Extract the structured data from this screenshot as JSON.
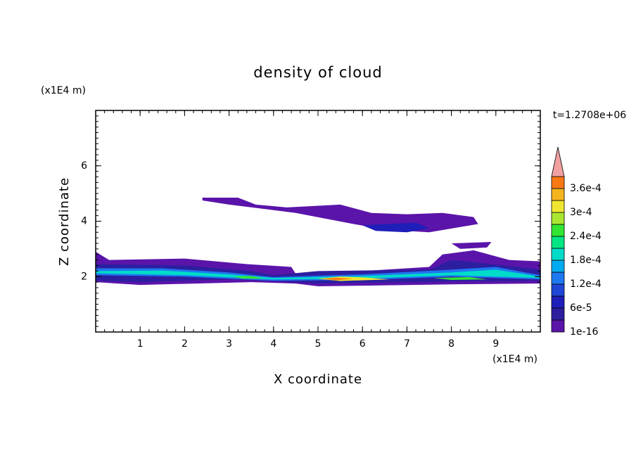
{
  "chart_data": {
    "type": "contour",
    "title": "density of cloud",
    "x_label": "X coordinate",
    "y_label": "Z coordinate",
    "x_unit": "(x1E4 m)",
    "y_unit": "(x1E4 m)",
    "annotation": "t=1.2708e+06",
    "xlim": [
      0,
      10
    ],
    "ylim": [
      0,
      8
    ],
    "xticks": [
      1,
      2,
      3,
      4,
      5,
      6,
      7,
      8,
      9
    ],
    "yticks": [
      2,
      4,
      6
    ],
    "x_minor_step": 0.2,
    "y_minor_step": 0.2,
    "levels": [
      1e-16,
      3e-05,
      6e-05,
      9e-05,
      0.00012,
      0.00015,
      0.00018,
      0.00021,
      0.00024,
      0.00027,
      0.0003,
      0.00033,
      0.00036
    ],
    "level_labels": [
      "1e-16",
      null,
      "6e-5",
      null,
      "1.2e-4",
      null,
      "1.8e-4",
      null,
      "2.4e-4",
      null,
      "3e-4",
      null,
      "3.6e-4"
    ],
    "level_colors": [
      "#5a14aa",
      "#2d1ea0",
      "#1e1eb9",
      "#1e46d7",
      "#1e78f0",
      "#00aaf0",
      "#00dcc8",
      "#00e682",
      "#32e632",
      "#aae632",
      "#f0e632",
      "#f5b41e",
      "#fa7814"
    ],
    "overflow_color": "#f0a0a0",
    "regions": [
      {
        "level": 1e-16,
        "points": [
          [
            2.4,
            4.85
          ],
          [
            3.2,
            4.85
          ],
          [
            3.6,
            4.6
          ],
          [
            4.3,
            4.5
          ],
          [
            5.5,
            4.6
          ],
          [
            6.2,
            4.3
          ],
          [
            7,
            4.25
          ],
          [
            7.8,
            4.3
          ],
          [
            8.5,
            4.15
          ],
          [
            8.6,
            3.9
          ],
          [
            7.5,
            3.6
          ],
          [
            6.5,
            3.7
          ],
          [
            5.8,
            3.9
          ],
          [
            4.5,
            4.3
          ],
          [
            4,
            4.4
          ],
          [
            3,
            4.6
          ],
          [
            2.4,
            4.75
          ]
        ]
      },
      {
        "level": 6e-05,
        "points": [
          [
            6,
            3.85
          ],
          [
            7.2,
            3.95
          ],
          [
            7.5,
            3.75
          ],
          [
            7,
            3.6
          ],
          [
            6.3,
            3.65
          ]
        ]
      },
      {
        "level": 1e-16,
        "points": [
          [
            8,
            3.2
          ],
          [
            8.9,
            3.25
          ],
          [
            8.8,
            3.05
          ],
          [
            8.2,
            3.0
          ]
        ]
      },
      {
        "level": 1e-16,
        "points": [
          [
            0,
            2.9
          ],
          [
            0.3,
            2.6
          ],
          [
            2,
            2.65
          ],
          [
            3.4,
            2.45
          ],
          [
            4.4,
            2.35
          ],
          [
            4.5,
            2.1
          ],
          [
            6,
            2.2
          ],
          [
            7.5,
            2.35
          ],
          [
            7.8,
            2.8
          ],
          [
            8.5,
            2.95
          ],
          [
            9.3,
            2.6
          ],
          [
            10,
            2.55
          ],
          [
            10,
            1.75
          ],
          [
            8,
            1.72
          ],
          [
            5,
            1.65
          ],
          [
            4.5,
            1.75
          ],
          [
            3.5,
            1.8
          ],
          [
            1,
            1.7
          ],
          [
            0,
            1.8
          ]
        ]
      },
      {
        "level": 3e-05,
        "points": [
          [
            0,
            2.45
          ],
          [
            2,
            2.4
          ],
          [
            3.5,
            2.2
          ],
          [
            4,
            2.05
          ],
          [
            5,
            2.2
          ],
          [
            7.5,
            2.25
          ],
          [
            8,
            2.6
          ],
          [
            9.5,
            2.35
          ],
          [
            10,
            2.25
          ],
          [
            10,
            1.85
          ],
          [
            7,
            1.8
          ],
          [
            5,
            1.75
          ],
          [
            3,
            1.9
          ],
          [
            1,
            1.8
          ],
          [
            0,
            1.85
          ]
        ]
      },
      {
        "level": 0.00012,
        "points": [
          [
            0,
            2.3
          ],
          [
            1.5,
            2.3
          ],
          [
            3,
            2.15
          ],
          [
            4,
            1.98
          ],
          [
            6,
            2.08
          ],
          [
            8,
            2.25
          ],
          [
            9,
            2.35
          ],
          [
            10,
            2.05
          ],
          [
            10,
            1.9
          ],
          [
            8,
            2.0
          ],
          [
            6,
            1.88
          ],
          [
            4,
            1.85
          ],
          [
            2,
            2.0
          ],
          [
            0,
            2.05
          ]
        ]
      },
      {
        "level": 0.00018,
        "points": [
          [
            0,
            2.2
          ],
          [
            1.5,
            2.22
          ],
          [
            3,
            2.08
          ],
          [
            4,
            1.95
          ],
          [
            6,
            2.02
          ],
          [
            8,
            2.15
          ],
          [
            9,
            2.25
          ],
          [
            10,
            2.0
          ],
          [
            10,
            1.95
          ],
          [
            8,
            2.05
          ],
          [
            6,
            1.93
          ],
          [
            4,
            1.9
          ],
          [
            2,
            2.05
          ],
          [
            0,
            2.12
          ]
        ]
      },
      {
        "level": 0.00024,
        "points": [
          [
            3.1,
            2.0
          ],
          [
            3.5,
            2.02
          ],
          [
            3.8,
            1.92
          ],
          [
            3.3,
            1.93
          ]
        ]
      },
      {
        "level": 0.0003,
        "points": [
          [
            5,
            1.92
          ],
          [
            5.5,
            2.0
          ],
          [
            6,
            1.97
          ],
          [
            6.6,
            1.9
          ],
          [
            5.5,
            1.84
          ]
        ]
      },
      {
        "level": 0.00036,
        "points": [
          [
            5.1,
            1.92
          ],
          [
            5.4,
            1.96
          ],
          [
            5.8,
            1.92
          ],
          [
            5.4,
            1.87
          ]
        ]
      },
      {
        "level": 0.00024,
        "points": [
          [
            7.6,
            1.95
          ],
          [
            8.4,
            1.98
          ],
          [
            8.8,
            1.9
          ],
          [
            8.0,
            1.88
          ]
        ]
      }
    ]
  }
}
